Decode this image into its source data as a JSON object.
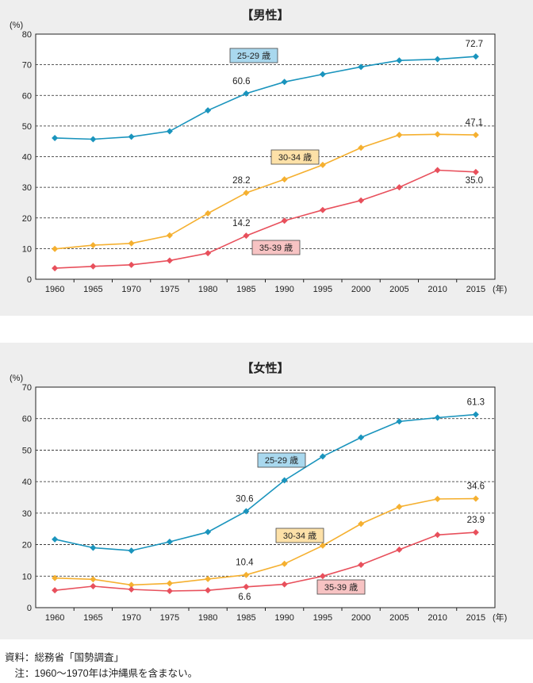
{
  "chart_data": [
    {
      "type": "line",
      "title": "【男性】",
      "y_unit": "(%)",
      "x_unit": "(年)",
      "ylim": [
        0,
        80
      ],
      "y_ticks": [
        0,
        10,
        20,
        30,
        40,
        50,
        60,
        70,
        80
      ],
      "grid": true,
      "categories": [
        "1960",
        "1965",
        "1970",
        "1975",
        "1980",
        "1985",
        "1990",
        "1995",
        "2000",
        "2005",
        "2010",
        "2015"
      ],
      "series": [
        {
          "name": "25-29 歳",
          "color": "#1a94bd",
          "label_bg": "#a9d8ee",
          "values": [
            46.1,
            45.7,
            46.5,
            48.3,
            55.1,
            60.6,
            64.4,
            66.9,
            69.3,
            71.4,
            71.8,
            72.7
          ],
          "annotations": [
            {
              "index": 5,
              "text": "60.6"
            },
            {
              "index": 11,
              "text": "72.7"
            }
          ]
        },
        {
          "name": "30-34 歳",
          "color": "#f5b030",
          "label_bg": "#fde1a8",
          "values": [
            9.9,
            11.1,
            11.7,
            14.3,
            21.5,
            28.2,
            32.6,
            37.3,
            42.9,
            47.1,
            47.3,
            47.1
          ],
          "annotations": [
            {
              "index": 5,
              "text": "28.2"
            },
            {
              "index": 11,
              "text": "47.1"
            }
          ]
        },
        {
          "name": "35-39 歳",
          "color": "#e8505c",
          "label_bg": "#f7c3c3",
          "values": [
            3.6,
            4.2,
            4.7,
            6.1,
            8.5,
            14.2,
            19.1,
            22.6,
            25.7,
            30.0,
            35.6,
            35.0
          ],
          "annotations": [
            {
              "index": 5,
              "text": "14.2"
            },
            {
              "index": 11,
              "text": "35.0"
            }
          ]
        }
      ]
    },
    {
      "type": "line",
      "title": "【女性】",
      "y_unit": "(%)",
      "x_unit": "(年)",
      "ylim": [
        0,
        70
      ],
      "y_ticks": [
        0,
        10,
        20,
        30,
        40,
        50,
        60,
        70
      ],
      "grid": true,
      "categories": [
        "1960",
        "1965",
        "1970",
        "1975",
        "1980",
        "1985",
        "1990",
        "1995",
        "2000",
        "2005",
        "2010",
        "2015"
      ],
      "series": [
        {
          "name": "25-29 歳",
          "color": "#1a94bd",
          "label_bg": "#a9d8ee",
          "values": [
            21.7,
            19.0,
            18.1,
            20.9,
            24.0,
            30.6,
            40.4,
            48.0,
            54.0,
            59.1,
            60.3,
            61.3
          ],
          "annotations": [
            {
              "index": 5,
              "text": "30.6"
            },
            {
              "index": 11,
              "text": "61.3"
            }
          ]
        },
        {
          "name": "30-34 歳",
          "color": "#f5b030",
          "label_bg": "#fde1a8",
          "values": [
            9.4,
            9.0,
            7.2,
            7.7,
            9.1,
            10.4,
            13.9,
            19.7,
            26.6,
            32.0,
            34.5,
            34.6
          ],
          "annotations": [
            {
              "index": 5,
              "text": "10.4"
            },
            {
              "index": 11,
              "text": "34.6"
            }
          ]
        },
        {
          "name": "35-39 歳",
          "color": "#e8505c",
          "label_bg": "#f7c3c3",
          "values": [
            5.5,
            6.8,
            5.8,
            5.3,
            5.5,
            6.6,
            7.4,
            10.0,
            13.6,
            18.4,
            23.1,
            23.9
          ],
          "annotations": [
            {
              "index": 5,
              "text": "6.6"
            },
            {
              "index": 11,
              "text": "23.9"
            }
          ]
        }
      ]
    }
  ],
  "notes": {
    "source": "資料：総務省「国勢調査」",
    "remark": "　注：1960～1970年は沖縄県を含まない。"
  }
}
